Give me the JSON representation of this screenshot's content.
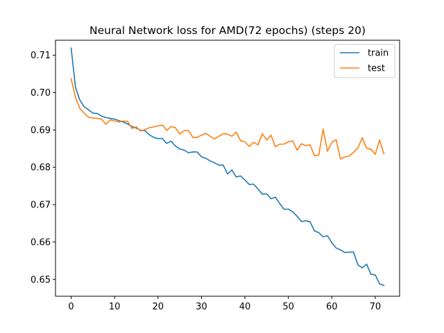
{
  "chart_data": {
    "type": "line",
    "title": "Neural Network loss for AMD(72 epochs) (steps 20)",
    "xlabel": "",
    "ylabel": "",
    "xlim": [
      -3.6,
      75.6
    ],
    "ylim": [
      0.6455,
      0.714
    ],
    "xticks": [
      0,
      10,
      20,
      30,
      40,
      50,
      60,
      70
    ],
    "yticks": [
      0.65,
      0.66,
      0.67,
      0.68,
      0.69,
      0.7,
      0.71
    ],
    "ytick_labels": [
      "0.65",
      "0.66",
      "0.67",
      "0.68",
      "0.69",
      "0.70",
      "0.71"
    ],
    "grid": false,
    "legend_position": "top-right",
    "series": [
      {
        "name": "train",
        "color": "#1f77b4",
        "values": [
          0.7119,
          0.7014,
          0.698,
          0.6962,
          0.6954,
          0.6945,
          0.6944,
          0.6937,
          0.6933,
          0.6931,
          0.6929,
          0.6925,
          0.6921,
          0.6916,
          0.6909,
          0.6905,
          0.6899,
          0.6898,
          0.6887,
          0.688,
          0.6877,
          0.6877,
          0.6864,
          0.687,
          0.6857,
          0.6849,
          0.6846,
          0.6839,
          0.6841,
          0.6841,
          0.6828,
          0.6824,
          0.6817,
          0.6812,
          0.6806,
          0.6806,
          0.6782,
          0.6793,
          0.6774,
          0.6777,
          0.6766,
          0.6754,
          0.6755,
          0.6742,
          0.6728,
          0.6729,
          0.6716,
          0.672,
          0.6703,
          0.6688,
          0.6688,
          0.6681,
          0.6669,
          0.6655,
          0.6657,
          0.6654,
          0.663,
          0.6625,
          0.6614,
          0.6617,
          0.6598,
          0.6584,
          0.6579,
          0.6572,
          0.6573,
          0.6573,
          0.6539,
          0.6531,
          0.6541,
          0.6514,
          0.6512,
          0.6488,
          0.6484
        ]
      },
      {
        "name": "test",
        "color": "#ff7f0e",
        "values": [
          0.7037,
          0.6987,
          0.6957,
          0.6945,
          0.6934,
          0.6932,
          0.6931,
          0.6929,
          0.6915,
          0.6927,
          0.6924,
          0.6921,
          0.6924,
          0.6923,
          0.6904,
          0.6908,
          0.6897,
          0.6901,
          0.6906,
          0.6908,
          0.6911,
          0.6913,
          0.6899,
          0.6909,
          0.6906,
          0.6889,
          0.6898,
          0.6898,
          0.688,
          0.688,
          0.6886,
          0.6891,
          0.6883,
          0.6876,
          0.6883,
          0.689,
          0.6889,
          0.6883,
          0.6894,
          0.6871,
          0.6868,
          0.6856,
          0.6867,
          0.686,
          0.689,
          0.6873,
          0.6886,
          0.6855,
          0.6862,
          0.6862,
          0.6868,
          0.6871,
          0.6846,
          0.6863,
          0.6858,
          0.686,
          0.6831,
          0.6833,
          0.6902,
          0.6843,
          0.6867,
          0.6874,
          0.6822,
          0.6828,
          0.683,
          0.684,
          0.6852,
          0.6879,
          0.6851,
          0.6848,
          0.6835,
          0.6873,
          0.6836
        ]
      }
    ]
  }
}
